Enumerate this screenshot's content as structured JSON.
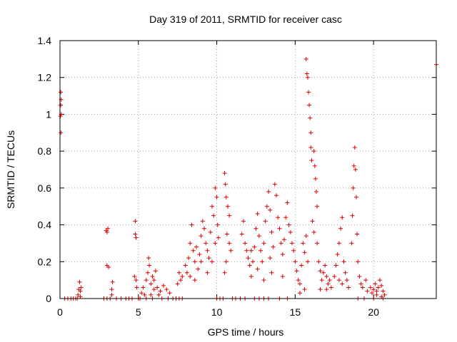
{
  "chart_data": {
    "type": "scatter",
    "title": "Day 319 of 2011, SRMTID for receiver casc",
    "xlabel": "GPS time / hours",
    "ylabel": "SRMTID / TECUs",
    "xlim": [
      0,
      24
    ],
    "ylim": [
      0,
      1.4
    ],
    "x_ticks": [
      0,
      5,
      10,
      15,
      20
    ],
    "x_tick_labels": [
      "0",
      "5",
      "10",
      "15",
      "20"
    ],
    "y_ticks": [
      0,
      0.2,
      0.4,
      0.6,
      0.8,
      1,
      1.2,
      1.4
    ],
    "y_tick_labels": [
      "0",
      "0.2",
      "0.4",
      "0.6",
      "0.8",
      "1",
      "1.2",
      "1.4"
    ],
    "grid": true,
    "marker": "plus",
    "color": "#dd0000",
    "series": [
      {
        "name": "SRMTID",
        "points": [
          [
            0.05,
            1.12
          ],
          [
            0.07,
            1.08
          ],
          [
            0.05,
            1.05
          ],
          [
            0.08,
            1.0
          ],
          [
            0.03,
            0.99
          ],
          [
            0.06,
            0.9
          ],
          [
            0.3,
            0
          ],
          [
            0.5,
            0
          ],
          [
            0.7,
            0
          ],
          [
            0.85,
            0
          ],
          [
            1.0,
            0
          ],
          [
            1.1,
            0
          ],
          [
            1.15,
            0.02
          ],
          [
            1.2,
            0.05
          ],
          [
            1.25,
            0.09
          ],
          [
            1.3,
            0.04
          ],
          [
            1.35,
            0.06
          ],
          [
            1.3,
            0.01
          ],
          [
            2.95,
            0.37
          ],
          [
            3.0,
            0.36
          ],
          [
            3.05,
            0.38
          ],
          [
            3.0,
            0.18
          ],
          [
            3.1,
            0.17
          ],
          [
            2.8,
            0
          ],
          [
            3.0,
            0
          ],
          [
            3.2,
            0
          ],
          [
            3.3,
            0.05
          ],
          [
            3.35,
            0.09
          ],
          [
            3.3,
            0.02
          ],
          [
            3.6,
            0
          ],
          [
            3.9,
            0
          ],
          [
            4.2,
            0
          ],
          [
            4.4,
            0
          ],
          [
            4.6,
            0
          ],
          [
            4.8,
            0.35
          ],
          [
            4.85,
            0.33
          ],
          [
            4.8,
            0.42
          ],
          [
            4.75,
            0.12
          ],
          [
            4.85,
            0.1
          ],
          [
            4.9,
            0.06
          ],
          [
            5.0,
            0
          ],
          [
            5.1,
            0
          ],
          [
            5.2,
            0.03
          ],
          [
            5.3,
            0.06
          ],
          [
            5.4,
            0.02
          ],
          [
            5.5,
            0.1
          ],
          [
            5.6,
            0.14
          ],
          [
            5.65,
            0.22
          ],
          [
            5.7,
            0.18
          ],
          [
            5.8,
            0.08
          ],
          [
            5.9,
            0.12
          ],
          [
            6.0,
            0.1
          ],
          [
            6.1,
            0.15
          ],
          [
            6.2,
            0.06
          ],
          [
            6.4,
            0.04
          ],
          [
            6.6,
            0.07
          ],
          [
            6.8,
            0.05
          ],
          [
            7.0,
            0.03
          ],
          [
            5.8,
            0.02
          ],
          [
            6.0,
            0.05
          ],
          [
            6.3,
            0.02
          ],
          [
            5.5,
            0
          ],
          [
            5.9,
            0
          ],
          [
            6.5,
            0
          ],
          [
            6.9,
            0
          ],
          [
            7.2,
            0
          ],
          [
            7.4,
            0
          ],
          [
            7.6,
            0
          ],
          [
            7.8,
            0
          ],
          [
            7.5,
            0.08
          ],
          [
            7.6,
            0.14
          ],
          [
            7.7,
            0.1
          ],
          [
            7.8,
            0.12
          ],
          [
            8.0,
            0.18
          ],
          [
            8.1,
            0.14
          ],
          [
            8.2,
            0.22
          ],
          [
            8.3,
            0.3
          ],
          [
            8.4,
            0.4
          ],
          [
            8.5,
            0.26
          ],
          [
            8.6,
            0.2
          ],
          [
            8.7,
            0.28
          ],
          [
            8.8,
            0.16
          ],
          [
            8.9,
            0.24
          ],
          [
            9.0,
            0.34
          ],
          [
            9.1,
            0.42
          ],
          [
            9.2,
            0.38
          ],
          [
            9.3,
            0.3
          ],
          [
            9.4,
            0.26
          ],
          [
            9.5,
            0.22
          ],
          [
            9.6,
            0.36
          ],
          [
            9.7,
            0.5
          ],
          [
            9.8,
            0.45
          ],
          [
            9.9,
            0.6
          ],
          [
            10.0,
            0.55
          ],
          [
            10.05,
            0.4
          ],
          [
            10.1,
            0.33
          ],
          [
            8.3,
            0.12
          ],
          [
            8.6,
            0.1
          ],
          [
            9.0,
            0.2
          ],
          [
            9.4,
            0.14
          ],
          [
            9.7,
            0.2
          ],
          [
            9.9,
            0.3
          ],
          [
            10.0,
            0
          ],
          [
            10.2,
            0
          ],
          [
            10.4,
            0
          ],
          [
            10.5,
            0.68
          ],
          [
            10.55,
            0.62
          ],
          [
            10.6,
            0.55
          ],
          [
            10.7,
            0.5
          ],
          [
            10.8,
            0.45
          ],
          [
            10.65,
            0.35
          ],
          [
            10.8,
            0.3
          ],
          [
            10.6,
            0.2
          ],
          [
            10.5,
            0.14
          ],
          [
            10.9,
            0.26
          ],
          [
            11.0,
            0
          ],
          [
            11.2,
            0
          ],
          [
            11.5,
            0
          ],
          [
            11.8,
            0
          ],
          [
            11.6,
            0.35
          ],
          [
            11.7,
            0.42
          ],
          [
            11.8,
            0.3
          ],
          [
            11.9,
            0.26
          ],
          [
            12.0,
            0.22
          ],
          [
            12.1,
            0.18
          ],
          [
            12.2,
            0.12
          ],
          [
            12.3,
            0.2
          ],
          [
            12.4,
            0.28
          ],
          [
            12.5,
            0.38
          ],
          [
            12.6,
            0.46
          ],
          [
            12.7,
            0.34
          ],
          [
            12.8,
            0.26
          ],
          [
            12.9,
            0.2
          ],
          [
            13.0,
            0.3
          ],
          [
            13.1,
            0.42
          ],
          [
            13.2,
            0.5
          ],
          [
            13.3,
            0.58
          ],
          [
            13.4,
            0.48
          ],
          [
            13.5,
            0.36
          ],
          [
            13.6,
            0.28
          ],
          [
            13.7,
            0.62
          ],
          [
            13.8,
            0.56
          ],
          [
            13.9,
            0.44
          ],
          [
            14.0,
            0.38
          ],
          [
            14.1,
            0.3
          ],
          [
            14.2,
            0.24
          ],
          [
            14.3,
            0.32
          ],
          [
            14.4,
            0.44
          ],
          [
            14.5,
            0.52
          ],
          [
            14.6,
            0.4
          ],
          [
            14.7,
            0.36
          ],
          [
            14.8,
            0.3
          ],
          [
            14.9,
            0.26
          ],
          [
            12.6,
            0.16
          ],
          [
            13.0,
            0.1
          ],
          [
            13.5,
            0.14
          ],
          [
            14.2,
            0.12
          ],
          [
            12.2,
            0.26
          ],
          [
            13.4,
            0.22
          ],
          [
            12.4,
            0
          ],
          [
            12.7,
            0
          ],
          [
            13.0,
            0
          ],
          [
            13.3,
            0
          ],
          [
            14.0,
            0
          ],
          [
            14.5,
            0
          ],
          [
            15.0,
            0.2
          ],
          [
            15.1,
            0.15
          ],
          [
            15.2,
            0.1
          ],
          [
            15.3,
            0.08
          ],
          [
            15.4,
            0.18
          ],
          [
            15.5,
            0.3
          ],
          [
            15.6,
            0.25
          ],
          [
            15.7,
            0.34
          ],
          [
            15.8,
            0.2
          ],
          [
            15.3,
            0.03
          ],
          [
            15.6,
            0.05
          ],
          [
            15.7,
            1.3
          ],
          [
            15.75,
            1.22
          ],
          [
            15.8,
            1.2
          ],
          [
            15.85,
            1.12
          ],
          [
            15.9,
            1.05
          ],
          [
            15.95,
            0.98
          ],
          [
            16.0,
            0.9
          ],
          [
            16.0,
            0.82
          ],
          [
            16.05,
            0.75
          ],
          [
            16.2,
            0.8
          ],
          [
            16.25,
            0.72
          ],
          [
            16.3,
            0.65
          ],
          [
            16.35,
            0.58
          ],
          [
            16.4,
            0.5
          ],
          [
            16.1,
            0.42
          ],
          [
            16.2,
            0.36
          ],
          [
            16.4,
            0.3
          ],
          [
            16.5,
            0.2
          ],
          [
            16.6,
            0.15
          ],
          [
            16.7,
            0.1
          ],
          [
            16.8,
            0.14
          ],
          [
            16.9,
            0.18
          ],
          [
            17.0,
            0.12
          ],
          [
            17.1,
            0.08
          ],
          [
            17.2,
            0.1
          ],
          [
            17.3,
            0.06
          ],
          [
            16.6,
            0.05
          ],
          [
            17.0,
            0.05
          ],
          [
            17.5,
            0.12
          ],
          [
            17.6,
            0.18
          ],
          [
            17.7,
            0.24
          ],
          [
            17.8,
            0.3
          ],
          [
            17.9,
            0.38
          ],
          [
            18.0,
            0.44
          ],
          [
            18.1,
            0.2
          ],
          [
            18.2,
            0.14
          ],
          [
            18.3,
            0.1
          ],
          [
            18.4,
            0.06
          ],
          [
            18.0,
            0.08
          ],
          [
            17.8,
            0.1
          ],
          [
            18.6,
            0.3
          ],
          [
            18.65,
            0.45
          ],
          [
            18.7,
            0.6
          ],
          [
            18.75,
            0.72
          ],
          [
            18.8,
            0.82
          ],
          [
            18.85,
            0.7
          ],
          [
            18.9,
            0.55
          ],
          [
            18.95,
            0.35
          ],
          [
            19.0,
            0.2
          ],
          [
            19.1,
            0.12
          ],
          [
            19.2,
            0.08
          ],
          [
            19.3,
            0.06
          ],
          [
            19.5,
            0.1
          ],
          [
            19.6,
            0.04
          ],
          [
            19.8,
            0.06
          ],
          [
            19.9,
            0.03
          ],
          [
            20.0,
            0.05
          ],
          [
            20.1,
            0.08
          ],
          [
            20.2,
            0.04
          ],
          [
            20.3,
            0.06
          ],
          [
            20.4,
            0.1
          ],
          [
            20.5,
            0.07
          ],
          [
            20.6,
            0.04
          ],
          [
            20.7,
            0.02
          ],
          [
            20.2,
            0.02
          ],
          [
            20.5,
            0.01
          ],
          [
            19.0,
            0
          ],
          [
            19.4,
            0
          ],
          [
            20.0,
            0
          ],
          [
            20.6,
            0
          ],
          [
            24.0,
            1.27
          ]
        ]
      }
    ]
  }
}
